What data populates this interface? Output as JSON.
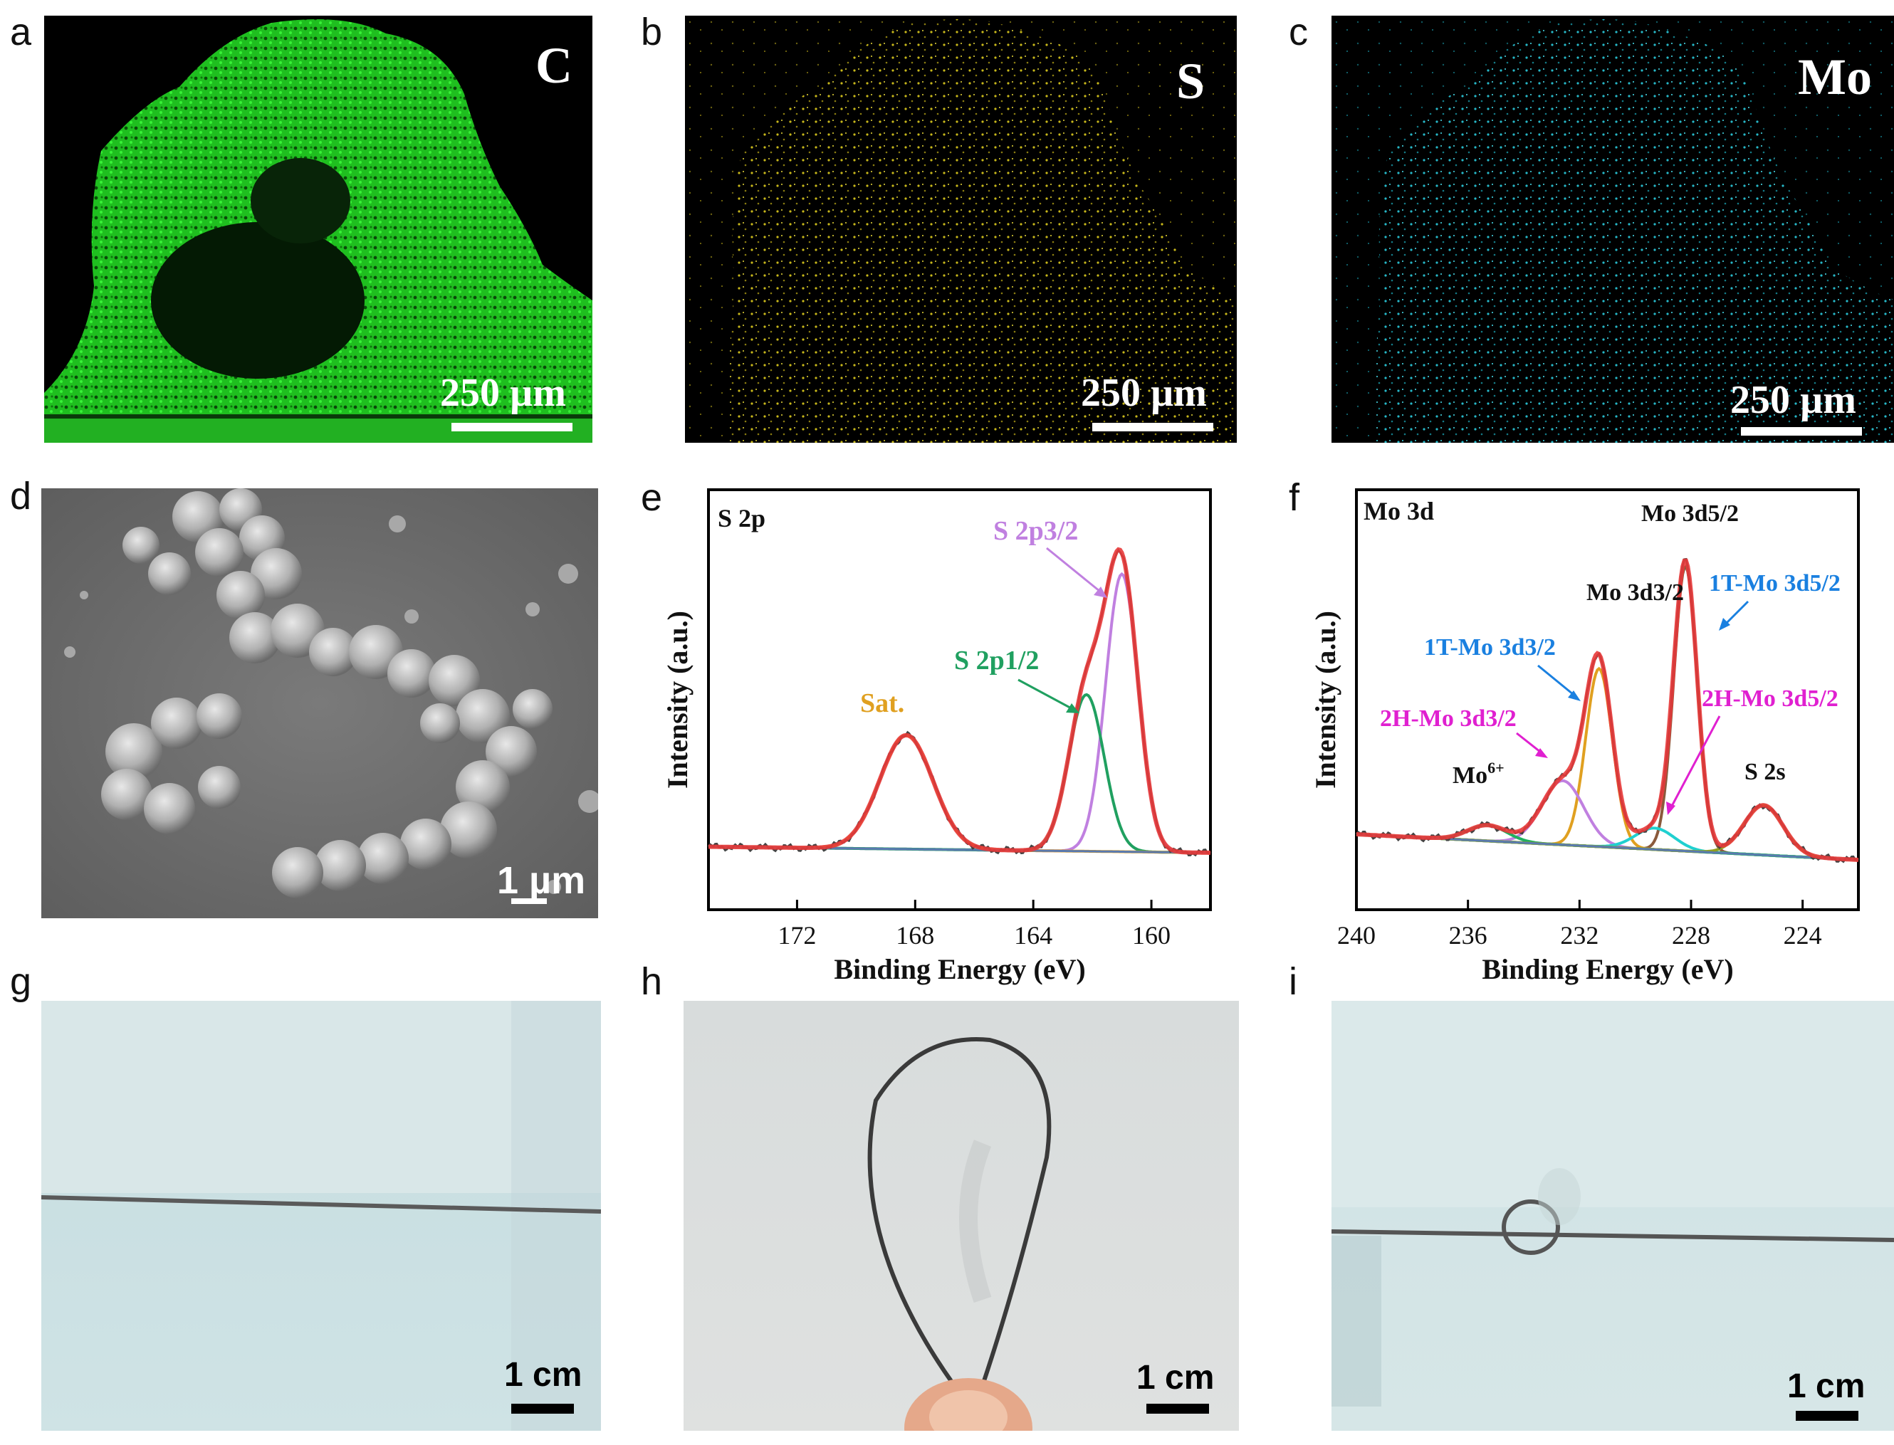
{
  "panels": {
    "a": {
      "letter": "a",
      "element": "C",
      "scale": "250 µm",
      "color": "#22e022"
    },
    "b": {
      "letter": "b",
      "element": "S",
      "scale": "250 µm",
      "color": "#e5d21e"
    },
    "c": {
      "letter": "c",
      "element": "Mo",
      "scale": "250 µm",
      "color": "#2ad8e8"
    },
    "d": {
      "letter": "d",
      "scale": "1 µm"
    },
    "e": {
      "letter": "e"
    },
    "f": {
      "letter": "f"
    },
    "g": {
      "letter": "g",
      "scale": "1 cm"
    },
    "h": {
      "letter": "h",
      "scale": "1 cm"
    },
    "i": {
      "letter": "i",
      "scale": "1 cm"
    }
  },
  "chart_data": [
    {
      "type": "line",
      "title": "S 2p",
      "xlabel": "Binding Energy (eV)",
      "ylabel": "Intensity (a.u.)",
      "xlim": [
        175,
        158
      ],
      "xticks": [
        172,
        168,
        164,
        160
      ],
      "annotations": [
        {
          "text": "S 2p3/2",
          "color": "#c080e0"
        },
        {
          "text": "S 2p1/2",
          "color": "#20a060"
        },
        {
          "text": "Sat.",
          "color": "#e0a020"
        }
      ],
      "peaks": [
        {
          "name": "S 2p3/2",
          "center": 161.0,
          "color": "#c080e0"
        },
        {
          "name": "S 2p1/2",
          "center": 162.2,
          "color": "#20a060"
        },
        {
          "name": "Sat.",
          "center": 168.3,
          "color": "#e0a020"
        }
      ]
    },
    {
      "type": "line",
      "title": "Mo 3d",
      "xlabel": "Binding Energy (eV)",
      "ylabel": "Intensity (a.u.)",
      "xlim": [
        240,
        222
      ],
      "xticks": [
        240,
        236,
        232,
        228,
        224
      ],
      "annotations": [
        {
          "text": "Mo 3d5/2",
          "color": "#111111"
        },
        {
          "text": "Mo 3d3/2",
          "color": "#111111"
        },
        {
          "text": "1T-Mo 3d5/2",
          "color": "#1a80e0"
        },
        {
          "text": "1T-Mo 3d3/2",
          "color": "#1a80e0"
        },
        {
          "text": "2H-Mo 3d3/2",
          "color": "#e020d0"
        },
        {
          "text": "2H-Mo 3d5/2",
          "color": "#e020d0"
        },
        {
          "text": "Mo",
          "sup": "6+",
          "color": "#111111"
        },
        {
          "text": "S 2s",
          "color": "#111111"
        }
      ],
      "peaks": [
        {
          "name": "1T-Mo 3d5/2",
          "center": 228.2,
          "color": "#8b5a3c"
        },
        {
          "name": "1T-Mo 3d3/2",
          "center": 231.3,
          "color": "#e0a020"
        },
        {
          "name": "2H-Mo 3d3/2",
          "center": 232.6,
          "color": "#c080e0"
        },
        {
          "name": "2H-Mo 3d5/2",
          "center": 229.3,
          "color": "#20d0d0"
        },
        {
          "name": "Mo6+",
          "center": 235.3,
          "color": "#20b060"
        },
        {
          "name": "S 2s",
          "center": 225.4,
          "color": "#90a020"
        }
      ]
    }
  ]
}
